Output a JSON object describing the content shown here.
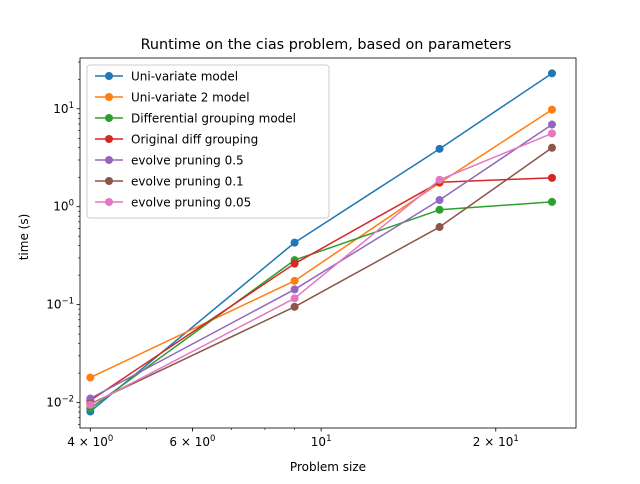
{
  "chart_data": {
    "type": "line",
    "title": "Runtime on the cias problem, based on parameters",
    "xlabel": "Problem size",
    "ylabel": "time (s)",
    "x_scale": "log",
    "y_scale": "log",
    "xlim": [
      3.84,
      27.5
    ],
    "ylim": [
      0.0055,
      33
    ],
    "grid": false,
    "legend_position": "upper left",
    "x_tick_labels": [
      {
        "value": 4,
        "mantissa": "4",
        "base": "10",
        "exp": "0"
      },
      {
        "value": 6,
        "mantissa": "6",
        "base": "10",
        "exp": "0"
      },
      {
        "value": 10,
        "mantissa": "",
        "base": "10",
        "exp": "1"
      },
      {
        "value": 20,
        "mantissa": "2",
        "base": "10",
        "exp": "1"
      }
    ],
    "y_tick_labels": [
      {
        "value": 0.01,
        "base": "10",
        "exp": "−2"
      },
      {
        "value": 0.1,
        "base": "10",
        "exp": "−1"
      },
      {
        "value": 1,
        "base": "10",
        "exp": "0"
      },
      {
        "value": 10,
        "base": "10",
        "exp": "1"
      }
    ],
    "x": [
      4,
      9,
      16,
      25
    ],
    "series": [
      {
        "name": "Uni-variate model",
        "color": "#1f77b4",
        "values": [
          0.0081,
          0.43,
          3.9,
          23
        ]
      },
      {
        "name": "Uni-variate 2 model",
        "color": "#ff7f0e",
        "values": [
          0.018,
          0.175,
          1.75,
          9.8
        ]
      },
      {
        "name": "Differential grouping model",
        "color": "#2ca02c",
        "values": [
          0.0087,
          0.285,
          0.93,
          1.12
        ]
      },
      {
        "name": "Original diff grouping",
        "color": "#d62728",
        "values": [
          0.0105,
          0.262,
          1.78,
          1.97
        ]
      },
      {
        "name": "evolve pruning 0.5",
        "color": "#9467bd",
        "values": [
          0.011,
          0.143,
          1.17,
          6.9
        ]
      },
      {
        "name": "evolve pruning 0.1",
        "color": "#8c564b",
        "values": [
          0.0097,
          0.095,
          0.62,
          4.0
        ]
      },
      {
        "name": "evolve pruning 0.05",
        "color": "#e377c2",
        "values": [
          0.0095,
          0.116,
          1.88,
          5.6
        ]
      }
    ]
  }
}
